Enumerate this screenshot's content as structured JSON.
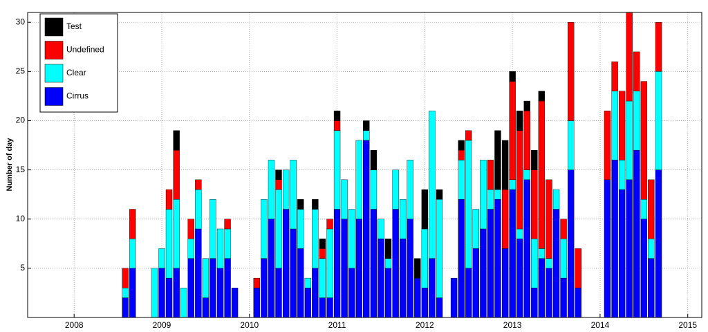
{
  "chart_data": {
    "type": "stacked_bar",
    "y_label": "Number of day",
    "xlim": [
      2007.47,
      2015.16
    ],
    "xticks": [
      2008,
      2009,
      2010,
      2011,
      2012,
      2013,
      2014,
      2015
    ],
    "ylim": [
      0,
      31
    ],
    "yticks": [
      5,
      10,
      15,
      20,
      25,
      30
    ],
    "grid": true,
    "legend": "upper left",
    "x": [
      2008.583,
      2008.667,
      2008.917,
      2009,
      2009.083,
      2009.167,
      2009.25,
      2009.333,
      2009.417,
      2009.5,
      2009.583,
      2009.667,
      2009.75,
      2009.833,
      2010.083,
      2010.167,
      2010.25,
      2010.333,
      2010.417,
      2010.5,
      2010.583,
      2010.667,
      2010.75,
      2010.833,
      2010.917,
      2011,
      2011.083,
      2011.167,
      2011.25,
      2011.333,
      2011.417,
      2011.5,
      2011.583,
      2011.667,
      2011.75,
      2011.833,
      2011.917,
      2012,
      2012.083,
      2012.167,
      2012.333,
      2012.417,
      2012.5,
      2012.583,
      2012.667,
      2012.75,
      2012.833,
      2012.917,
      2013,
      2013.083,
      2013.167,
      2013.25,
      2013.333,
      2013.417,
      2013.5,
      2013.583,
      2013.667,
      2013.75,
      2014.083,
      2014.167,
      2014.25,
      2014.333,
      2014.417,
      2014.5,
      2014.583,
      2014.667
    ],
    "series": [
      {
        "name": "Cirrus",
        "color": "#0000ff",
        "values": [
          2,
          5,
          0,
          5,
          4,
          5,
          0,
          6,
          9,
          2,
          6,
          5,
          6,
          3,
          3,
          6,
          10,
          5,
          11,
          9,
          7,
          3,
          5,
          2,
          2,
          11,
          10,
          5,
          10,
          18,
          11,
          8,
          5,
          11,
          8,
          10,
          4,
          3,
          6,
          2,
          4,
          12,
          5,
          7,
          9,
          11,
          12,
          7,
          13,
          8,
          14,
          3,
          6,
          5,
          11,
          4,
          15,
          3,
          14,
          16,
          13,
          14,
          17,
          10,
          6,
          15
        ]
      },
      {
        "name": "Clear",
        "color": "#00ffff",
        "values": [
          1,
          3,
          5,
          2,
          7,
          7,
          3,
          2,
          4,
          4,
          6,
          4,
          3,
          0,
          0,
          6,
          6,
          8,
          4,
          7,
          4,
          1,
          6,
          4,
          7,
          8,
          4,
          6,
          8,
          1,
          4,
          2,
          1,
          4,
          4,
          6,
          0,
          6,
          15,
          10,
          0,
          4,
          13,
          4,
          7,
          2,
          1,
          0,
          1,
          1,
          1,
          5,
          1,
          1,
          2,
          4,
          5,
          0,
          0,
          7,
          3,
          8,
          6,
          2,
          2,
          10
        ]
      },
      {
        "name": "Undefined",
        "color": "#ff0000",
        "values": [
          2,
          3,
          0,
          0,
          2,
          5,
          0,
          2,
          1,
          0,
          0,
          0,
          1,
          0,
          1,
          0,
          0,
          1,
          0,
          0,
          0,
          0,
          0,
          1,
          1,
          1,
          0,
          0,
          0,
          0,
          0,
          0,
          0,
          0,
          0,
          0,
          0,
          0,
          0,
          0,
          0,
          1,
          1,
          0,
          0,
          3,
          0,
          6,
          10,
          10,
          6,
          7,
          15,
          8,
          0,
          2,
          10,
          4,
          7,
          3,
          7,
          9,
          4,
          12,
          6,
          5
        ]
      },
      {
        "name": "Test",
        "color": "#000000",
        "values": [
          0,
          0,
          0,
          0,
          0,
          2,
          0,
          0,
          0,
          0,
          0,
          0,
          0,
          0,
          0,
          0,
          0,
          1,
          0,
          0,
          1,
          0,
          1,
          1,
          0,
          1,
          0,
          0,
          0,
          1,
          2,
          0,
          2,
          0,
          0,
          0,
          2,
          4,
          0,
          1,
          0,
          1,
          0,
          0,
          0,
          0,
          6,
          5,
          1,
          2,
          1,
          2,
          1,
          0,
          0,
          0,
          0,
          0,
          0,
          0,
          0,
          0,
          0,
          0,
          0,
          0
        ]
      }
    ]
  }
}
